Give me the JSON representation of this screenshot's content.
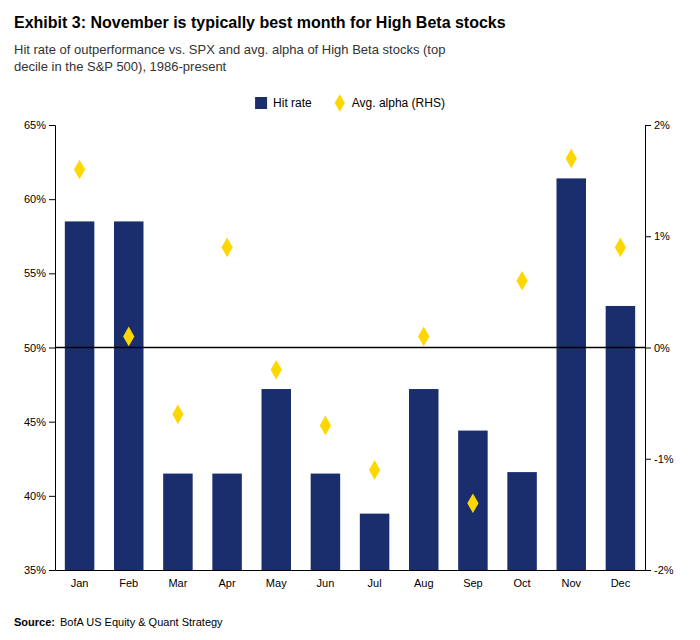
{
  "chart_data": {
    "type": "bar",
    "title": "Exhibit 3: November is typically best month for High Beta stocks",
    "subtitle": "Hit rate of outperformance vs. SPX and avg. alpha of High Beta stocks (top\ndecile in the S&P 500), 1986-present",
    "annotations": [
      "Source:",
      "BofA US Equity & Quant Strategy"
    ],
    "categories": [
      "Jan",
      "Feb",
      "Mar",
      "Apr",
      "May",
      "Jun",
      "Jul",
      "Aug",
      "Sep",
      "Oct",
      "Nov",
      "Dec"
    ],
    "series": [
      {
        "name": "Hit rate",
        "type": "bar",
        "color": "#1a2e6e",
        "values": [
          0.585,
          0.585,
          0.415,
          0.415,
          0.472,
          0.415,
          0.388,
          0.472,
          0.444,
          0.416,
          0.614,
          0.528
        ]
      },
      {
        "name": "Avg. alpha (RHS)",
        "type": "scatter",
        "marker": "diamond",
        "color": "#FFD700",
        "axis": "y2",
        "values": [
          0.016,
          0.001,
          -0.006,
          0.009,
          -0.002,
          -0.007,
          -0.011,
          0.001,
          -0.014,
          0.006,
          0.017,
          0.009
        ]
      }
    ],
    "reference_line": 0.5,
    "ylim": [
      0.35,
      0.65
    ],
    "yticks": [
      {
        "value": 0.35,
        "label": "35%"
      },
      {
        "value": 0.4,
        "label": "40%"
      },
      {
        "value": 0.45,
        "label": "45%"
      },
      {
        "value": 0.5,
        "label": "50%"
      },
      {
        "value": 0.55,
        "label": "55%"
      },
      {
        "value": 0.6,
        "label": "60%"
      },
      {
        "value": 0.65,
        "label": "65%"
      }
    ],
    "y2lim": [
      -0.02,
      0.02
    ],
    "y2ticks": [
      {
        "value": -0.02,
        "label": "-2%"
      },
      {
        "value": -0.01,
        "label": "-1%"
      },
      {
        "value": 0.0,
        "label": "0%"
      },
      {
        "value": 0.01,
        "label": "1%"
      },
      {
        "value": 0.02,
        "label": "2%"
      }
    ],
    "grid": false,
    "legend": "top"
  }
}
